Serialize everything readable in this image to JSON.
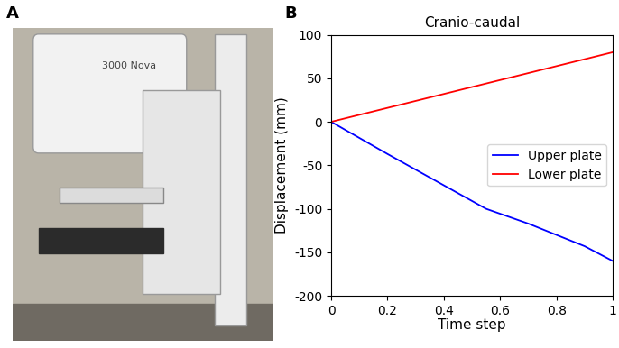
{
  "panel_labels": [
    "A",
    "B"
  ],
  "photo": {
    "text": "3000 Nova"
  },
  "chart_data": {
    "type": "line",
    "title": "Cranio-caudal",
    "x_label": "Time step",
    "y_label": "Displacement (mm)",
    "series": [
      {
        "name": "Upper plate",
        "color": "#0000ff",
        "x": [
          0,
          0.2,
          0.4,
          0.55,
          0.7,
          0.8,
          0.9,
          1
        ],
        "values": [
          0,
          -37,
          -73,
          -100,
          -117,
          -130,
          -143,
          -160
        ]
      },
      {
        "name": "Lower plate",
        "color": "#ff0000",
        "x": [
          0,
          0.5,
          1
        ],
        "values": [
          0,
          40,
          80
        ]
      }
    ],
    "xlim": [
      0,
      1
    ],
    "xticks": [
      0,
      0.2,
      0.4,
      0.6,
      0.8,
      1
    ],
    "ylim": [
      -200,
      100
    ],
    "yticks": [
      -200,
      -150,
      -100,
      -50,
      0,
      50,
      100
    ],
    "legend": "center right",
    "grid": false
  }
}
